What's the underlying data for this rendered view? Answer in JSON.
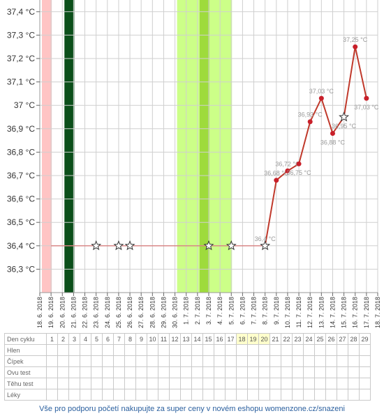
{
  "chart_data": {
    "type": "line",
    "y_ticks": [
      "37,4 °C",
      "37,3 °C",
      "37,2 °C",
      "37,1 °C",
      "37 °C",
      "36,9 °C",
      "36,8 °C",
      "36,7 °C",
      "36,6 °C",
      "36,5 °C",
      "36,4 °C",
      "36,3 °C"
    ],
    "ylim": [
      36.2,
      37.45
    ],
    "x_dates": [
      "18. 6. 2018",
      "19. 6. 2018",
      "20. 6. 2018",
      "21. 6. 2018",
      "22. 6. 2018",
      "23. 6. 2018",
      "24. 6. 2018",
      "25. 6. 2018",
      "26. 6. 2018",
      "27. 6. 2018",
      "28. 6. 2018",
      "29. 6. 2018",
      "30. 6. 2018",
      "1. 7. 2018",
      "2. 7. 2018",
      "3. 7. 2018",
      "4. 7. 2018",
      "5. 7. 2018",
      "6. 7. 2018",
      "7. 7. 2018",
      "8. 7. 2018",
      "9. 7. 2018",
      "10. 7. 2018",
      "11. 7. 2018",
      "12. 7. 2018",
      "13. 7. 2018",
      "14. 7. 2018",
      "15. 7. 2018",
      "16. 7. 2018",
      "17. 7. 2018",
      "18. 7. 2018"
    ],
    "baseline": {
      "value": 36.4,
      "from": "19. 6. 2018",
      "to": "8. 7. 2018"
    },
    "stars": [
      {
        "date": "23. 6. 2018",
        "value": 36.4
      },
      {
        "date": "25. 6. 2018",
        "value": 36.4
      },
      {
        "date": "26. 6. 2018",
        "value": 36.4
      },
      {
        "date": "3. 7. 2018",
        "value": 36.4
      },
      {
        "date": "5. 7. 2018",
        "value": 36.4
      },
      {
        "date": "8. 7. 2018",
        "value": 36.4
      },
      {
        "date": "15. 7. 2018",
        "value": 36.95
      }
    ],
    "series": [
      {
        "points": [
          {
            "date": "8. 7. 2018",
            "value": 36.4,
            "label": "36,4 °C"
          },
          {
            "date": "9. 7. 2018",
            "value": 36.68,
            "label": "36,68 °C"
          },
          {
            "date": "10. 7. 2018",
            "value": 36.72,
            "label": "36,72 °C"
          },
          {
            "date": "11. 7. 2018",
            "value": 36.75,
            "label": "36,75 °C"
          },
          {
            "date": "12. 7. 2018",
            "value": 36.93,
            "label": "36,93 °C"
          },
          {
            "date": "13. 7. 2018",
            "value": 37.03,
            "label": "37,03 °C"
          },
          {
            "date": "14. 7. 2018",
            "value": 36.88,
            "label": "36,88 °C"
          },
          {
            "date": "15. 7. 2018",
            "value": 36.95,
            "label": "36,95 °C"
          },
          {
            "date": "16. 7. 2018",
            "value": 37.25,
            "label": "37,25 °C"
          },
          {
            "date": "17. 7. 2018",
            "value": 37.03,
            "label": "37,03 °C"
          }
        ]
      }
    ],
    "bands": [
      {
        "from": "18. 6. 2018",
        "to": "19. 6. 2018",
        "color": "#ffc4c4"
      },
      {
        "from": "20. 6. 2018",
        "to": "21. 6. 2018",
        "color": "#0b4f1a"
      },
      {
        "from": "30. 6. 2018",
        "to": "5. 7. 2018",
        "color": "#ccff88"
      },
      {
        "from": "2. 7. 2018",
        "to": "3. 7. 2018",
        "color": "#9edb3c"
      }
    ],
    "colors": {
      "line": "#c0392b",
      "point": "#c8202a",
      "baseline": "#d98080",
      "grid": "#cfcfcf"
    }
  },
  "table": {
    "header_label": "Den cyklu",
    "days": [
      "1",
      "2",
      "3",
      "4",
      "5",
      "6",
      "7",
      "8",
      "9",
      "10",
      "11",
      "12",
      "13",
      "14",
      "15",
      "16",
      "17",
      "18",
      "19",
      "20",
      "21",
      "22",
      "23",
      "24",
      "25",
      "26",
      "27",
      "28",
      "29"
    ],
    "highlight_days": [
      "18",
      "19",
      "20"
    ],
    "rows": [
      "Hlen",
      "Čípek",
      "Ovu test",
      "Těhu test",
      "Léky"
    ]
  },
  "footer": {
    "text": "Vše pro podporu početí nakupujte za super ceny v novém eshopu womenzone.cz/snazeni"
  }
}
